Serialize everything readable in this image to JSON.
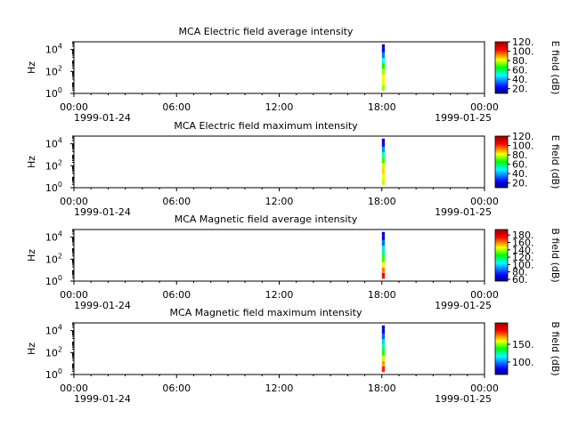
{
  "chart_data": [
    {
      "type": "heatmap",
      "title": "MCA  Electric field average intensity",
      "ylabel": "Hz",
      "ylog": true,
      "ytick_labels": [
        "10",
        "10",
        "10"
      ],
      "ytick_exponents": [
        "0",
        "2",
        "4"
      ],
      "x_ticks": [
        "00:00",
        "06:00",
        "12:00",
        "18:00",
        "00:00"
      ],
      "x_date_start": "1999-01-24",
      "x_date_end": "1999-01-25",
      "colorbar_label": "E field (dB)",
      "colorbar_range": [
        10,
        120
      ],
      "colorbar_ticks": [
        "20.",
        "40.",
        "60.",
        "80.",
        "100.",
        "120."
      ],
      "data_window": {
        "start": "1999-01-24T18:00",
        "end": "1999-01-24T18:10"
      },
      "profile": [
        {
          "freq_hz": 3,
          "value": 75
        },
        {
          "freq_hz": 10,
          "value": 80
        },
        {
          "freq_hz": 30,
          "value": 82
        },
        {
          "freq_hz": 100,
          "value": 75
        },
        {
          "freq_hz": 300,
          "value": 65
        },
        {
          "freq_hz": 1000,
          "value": 50
        },
        {
          "freq_hz": 3000,
          "value": 35
        },
        {
          "freq_hz": 10000,
          "value": 20
        },
        {
          "freq_hz": 20000,
          "value": 12
        }
      ]
    },
    {
      "type": "heatmap",
      "title": "MCA  Electric field maximum intensity",
      "ylabel": "Hz",
      "ylog": true,
      "ytick_labels": [
        "10",
        "10",
        "10"
      ],
      "ytick_exponents": [
        "0",
        "2",
        "4"
      ],
      "x_ticks": [
        "00:00",
        "06:00",
        "12:00",
        "18:00",
        "00:00"
      ],
      "x_date_start": "1999-01-24",
      "x_date_end": "1999-01-25",
      "colorbar_label": "E field (dB)",
      "colorbar_range": [
        10,
        120
      ],
      "colorbar_ticks": [
        "20.",
        "40.",
        "60.",
        "80.",
        "100.",
        "120."
      ],
      "data_window": {
        "start": "1999-01-24T18:00",
        "end": "1999-01-24T18:10"
      },
      "profile": [
        {
          "freq_hz": 3,
          "value": 78
        },
        {
          "freq_hz": 10,
          "value": 82
        },
        {
          "freq_hz": 30,
          "value": 85
        },
        {
          "freq_hz": 100,
          "value": 78
        },
        {
          "freq_hz": 300,
          "value": 68
        },
        {
          "freq_hz": 1000,
          "value": 52
        },
        {
          "freq_hz": 3000,
          "value": 38
        },
        {
          "freq_hz": 10000,
          "value": 22
        },
        {
          "freq_hz": 20000,
          "value": 14
        }
      ]
    },
    {
      "type": "heatmap",
      "title": "MCA  Magnetic field average intensity",
      "ylabel": "Hz",
      "ylog": true,
      "ytick_labels": [
        "10",
        "10",
        "10"
      ],
      "ytick_exponents": [
        "0",
        "2",
        "4"
      ],
      "x_ticks": [
        "00:00",
        "06:00",
        "12:00",
        "18:00",
        "00:00"
      ],
      "x_date_start": "1999-01-24",
      "x_date_end": "1999-01-25",
      "colorbar_label": "B field (dB)",
      "colorbar_range": [
        55,
        195
      ],
      "colorbar_ticks": [
        "60.",
        "80.",
        "100.",
        "120.",
        "140.",
        "160.",
        "180."
      ],
      "data_window": {
        "start": "1999-01-24T18:00",
        "end": "1999-01-24T18:10"
      },
      "profile": [
        {
          "freq_hz": 3,
          "value": 175
        },
        {
          "freq_hz": 10,
          "value": 160
        },
        {
          "freq_hz": 30,
          "value": 145
        },
        {
          "freq_hz": 100,
          "value": 130
        },
        {
          "freq_hz": 300,
          "value": 115
        },
        {
          "freq_hz": 1000,
          "value": 100
        },
        {
          "freq_hz": 3000,
          "value": 85
        },
        {
          "freq_hz": 10000,
          "value": 70
        },
        {
          "freq_hz": 20000,
          "value": 62
        }
      ]
    },
    {
      "type": "heatmap",
      "title": "MCA  Magnetic field maximum intensity",
      "ylabel": "Hz",
      "ylog": true,
      "ytick_labels": [
        "10",
        "10",
        "10"
      ],
      "ytick_exponents": [
        "0",
        "2",
        "4"
      ],
      "x_ticks": [
        "00:00",
        "06:00",
        "12:00",
        "18:00",
        "00:00"
      ],
      "x_date_start": "1999-01-24",
      "x_date_end": "1999-01-25",
      "colorbar_label": "B field (dB)",
      "colorbar_range": [
        65,
        210
      ],
      "colorbar_ticks": [
        "100.",
        "150."
      ],
      "data_window": {
        "start": "1999-01-24T18:00",
        "end": "1999-01-24T18:10"
      },
      "profile": [
        {
          "freq_hz": 3,
          "value": 185
        },
        {
          "freq_hz": 10,
          "value": 170
        },
        {
          "freq_hz": 30,
          "value": 155
        },
        {
          "freq_hz": 100,
          "value": 140
        },
        {
          "freq_hz": 300,
          "value": 125
        },
        {
          "freq_hz": 1000,
          "value": 110
        },
        {
          "freq_hz": 3000,
          "value": 95
        },
        {
          "freq_hz": 10000,
          "value": 80
        },
        {
          "freq_hz": 20000,
          "value": 70
        }
      ]
    }
  ]
}
